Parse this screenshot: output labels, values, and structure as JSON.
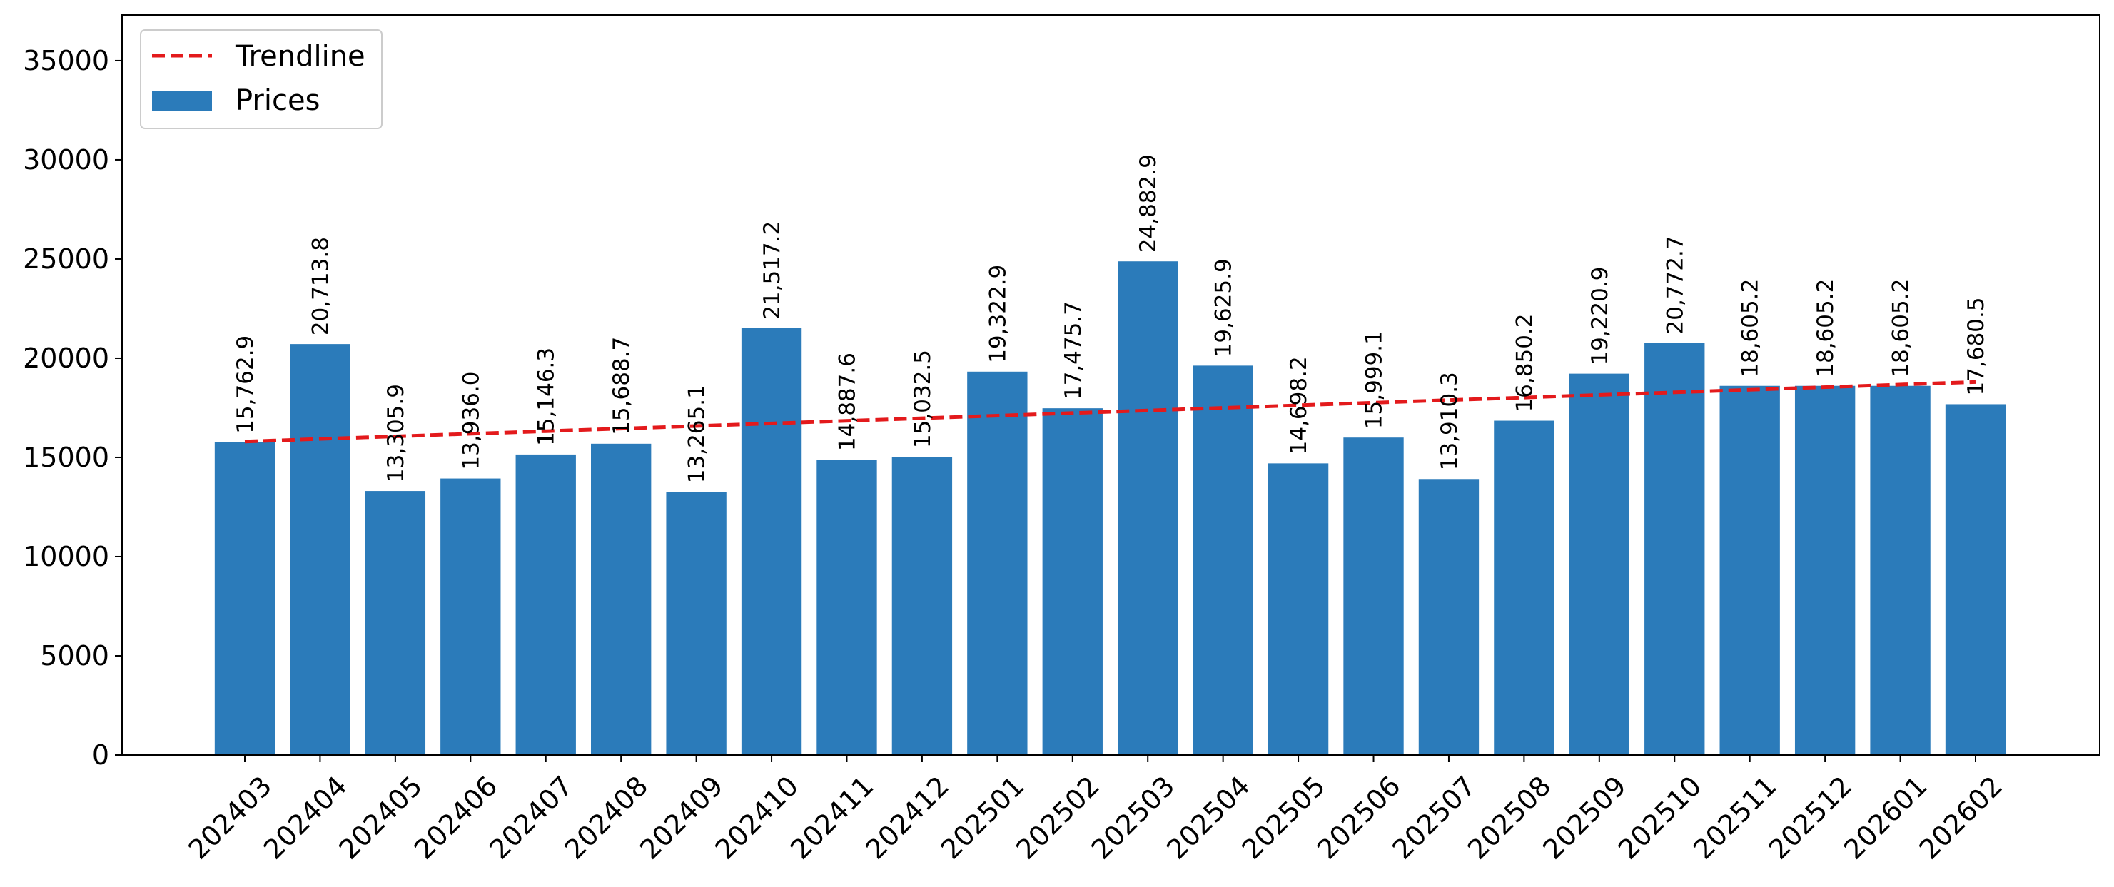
{
  "chart_data": {
    "type": "bar",
    "title": "",
    "xlabel": "",
    "ylabel": "",
    "categories": [
      "202403",
      "202404",
      "202405",
      "202406",
      "202407",
      "202408",
      "202409",
      "202410",
      "202411",
      "202412",
      "202501",
      "202502",
      "202503",
      "202504",
      "202505",
      "202506",
      "202507",
      "202508",
      "202509",
      "202510",
      "202511",
      "202512",
      "202601",
      "202602"
    ],
    "series": [
      {
        "name": "Prices",
        "type": "bar",
        "color": "#2b7bba",
        "values": [
          15762.9,
          20713.8,
          13305.9,
          13936.0,
          15146.3,
          15688.7,
          13265.1,
          21517.2,
          14887.6,
          15032.5,
          19322.9,
          17475.7,
          24882.9,
          19625.9,
          14698.2,
          15999.1,
          13910.3,
          16850.2,
          19220.9,
          20772.7,
          18605.2,
          18605.2,
          18605.2,
          17680.5
        ],
        "labels": [
          "15,762.9",
          "20,713.8",
          "13,305.9",
          "13,936.0",
          "15,146.3",
          "15,688.7",
          "13,265.1",
          "21,517.2",
          "14,887.6",
          "15,032.5",
          "19,322.9",
          "17,475.7",
          "24,882.9",
          "19,625.9",
          "14,698.2",
          "15,999.1",
          "13,910.3",
          "16,850.2",
          "19,220.9",
          "20,772.7",
          "18,605.2",
          "18,605.2",
          "18,605.2",
          "17,680.5"
        ]
      },
      {
        "name": "Trendline",
        "type": "line",
        "style": "dashed",
        "color": "#e31a1c",
        "start": 15800,
        "end": 18800
      }
    ],
    "ylim": [
      0,
      37300
    ],
    "yticks": [
      "0",
      "5000",
      "10000",
      "15000",
      "20000",
      "25000",
      "30000",
      "35000"
    ],
    "legend": {
      "placement": "top-left",
      "entries": [
        "Trendline",
        "Prices"
      ]
    },
    "grid": false
  }
}
